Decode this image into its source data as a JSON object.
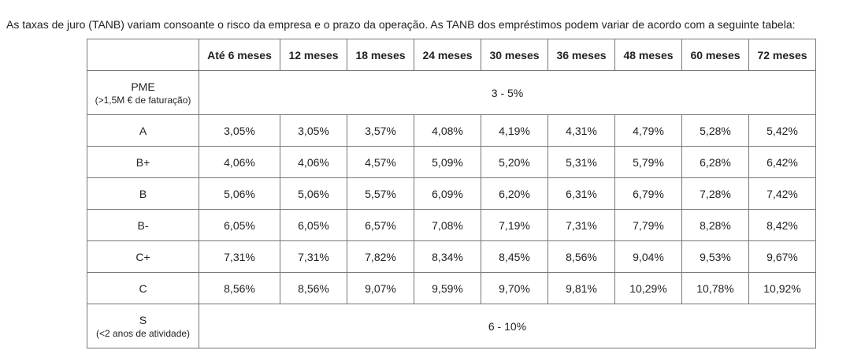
{
  "intro_text": "As taxas de juro (TANB) variam consoante o risco da empresa e o prazo da operação. As TANB dos empréstimos podem variar de acordo com a seguinte tabela:",
  "table": {
    "corner": "",
    "columns": [
      "Até 6 meses",
      "12 meses",
      "18 meses",
      "24 meses",
      "30 meses",
      "36 meses",
      "48 meses",
      "60 meses",
      "72 meses"
    ],
    "pme": {
      "label": "PME",
      "sublabel": "(>1,5M € de faturação)",
      "range": "3 - 5%"
    },
    "rows": [
      {
        "label": "A",
        "values": [
          "3,05%",
          "3,05%",
          "3,57%",
          "4,08%",
          "4,19%",
          "4,31%",
          "4,79%",
          "5,28%",
          "5,42%"
        ]
      },
      {
        "label": "B+",
        "values": [
          "4,06%",
          "4,06%",
          "4,57%",
          "5,09%",
          "5,20%",
          "5,31%",
          "5,79%",
          "6,28%",
          "6,42%"
        ]
      },
      {
        "label": "B",
        "values": [
          "5,06%",
          "5,06%",
          "5,57%",
          "6,09%",
          "6,20%",
          "6,31%",
          "6,79%",
          "7,28%",
          "7,42%"
        ]
      },
      {
        "label": "B-",
        "values": [
          "6,05%",
          "6,05%",
          "6,57%",
          "7,08%",
          "7,19%",
          "7,31%",
          "7,79%",
          "8,28%",
          "8,42%"
        ]
      },
      {
        "label": "C+",
        "values": [
          "7,31%",
          "7,31%",
          "7,82%",
          "8,34%",
          "8,45%",
          "8,56%",
          "9,04%",
          "9,53%",
          "9,67%"
        ]
      },
      {
        "label": "C",
        "values": [
          "8,56%",
          "8,56%",
          "9,07%",
          "9,59%",
          "9,70%",
          "9,81%",
          "10,29%",
          "10,78%",
          "10,92%"
        ]
      }
    ],
    "s": {
      "label": "S",
      "sublabel": "(<2 anos de atividade)",
      "range": "6 - 10%"
    }
  }
}
